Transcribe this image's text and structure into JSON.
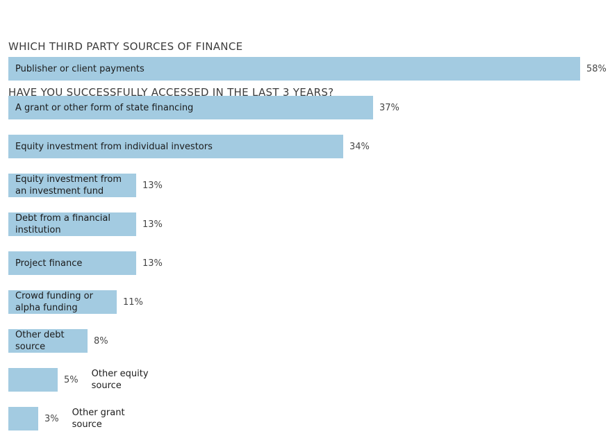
{
  "title": {
    "line1": "WHICH THIRD PARTY SOURCES OF FINANCE",
    "line2": "HAVE YOU SUCCESSFULLY ACCESSED IN THE LAST 3 YEARS?"
  },
  "colors": {
    "background": "#FFFFFF",
    "bar_fill": "#A3CBE1",
    "title_text": "#3C3C3C",
    "bar_label_text": "#1B1B1B",
    "percent_text": "#474747"
  },
  "chart_data": {
    "type": "bar",
    "orientation": "horizontal",
    "title": "WHICH THIRD PARTY SOURCES OF FINANCE HAVE YOU SUCCESSFULLY ACCESSED IN THE LAST 3 YEARS?",
    "unit": "%",
    "value_axis_range": [
      0,
      60
    ],
    "grid": false,
    "legend": false,
    "categories": [
      "Publisher or client payments",
      "A grant or other form of state financing",
      "Equity investment from individual investors",
      "Equity investment from an investment fund",
      "Debt from a financial institution",
      "Project finance",
      "Crowd funding or alpha funding",
      "Other debt source",
      "Other equity source",
      "Other grant source"
    ],
    "values": [
      58,
      37,
      34,
      13,
      13,
      13,
      11,
      8,
      5,
      3
    ],
    "bars": [
      {
        "label_lines": [
          "Publisher or client payments"
        ],
        "value": 58,
        "percent_label": "58%",
        "label_position": "inside"
      },
      {
        "label_lines": [
          "A grant or other form of state financing"
        ],
        "value": 37,
        "percent_label": "37%",
        "label_position": "inside"
      },
      {
        "label_lines": [
          "Equity investment from individual investors"
        ],
        "value": 34,
        "percent_label": "34%",
        "label_position": "inside"
      },
      {
        "label_lines": [
          "Equity investment from",
          "an investment fund"
        ],
        "value": 13,
        "percent_label": "13%",
        "label_position": "inside"
      },
      {
        "label_lines": [
          "Debt from a financial",
          "institution"
        ],
        "value": 13,
        "percent_label": "13%",
        "label_position": "inside"
      },
      {
        "label_lines": [
          "Project finance"
        ],
        "value": 13,
        "percent_label": "13%",
        "label_position": "inside"
      },
      {
        "label_lines": [
          "Crowd funding or",
          "alpha funding"
        ],
        "value": 11,
        "percent_label": "11%",
        "label_position": "inside"
      },
      {
        "label_lines": [
          "Other debt",
          "source"
        ],
        "value": 8,
        "percent_label": "8%",
        "label_position": "inside"
      },
      {
        "label_lines": [
          "Other equity",
          "source"
        ],
        "value": 5,
        "percent_label": "5%",
        "label_position": "outside"
      },
      {
        "label_lines": [
          "Other grant",
          "source"
        ],
        "value": 3,
        "percent_label": "3%",
        "label_position": "outside"
      }
    ]
  }
}
